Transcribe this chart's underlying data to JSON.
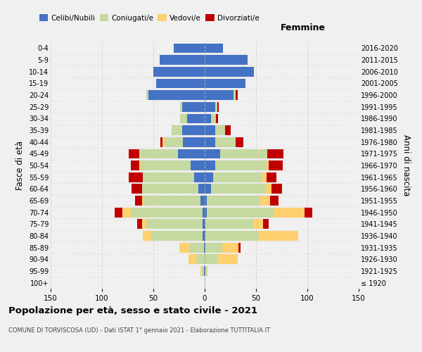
{
  "age_groups": [
    "100+",
    "95-99",
    "90-94",
    "85-89",
    "80-84",
    "75-79",
    "70-74",
    "65-69",
    "60-64",
    "55-59",
    "50-54",
    "45-49",
    "40-44",
    "35-39",
    "30-34",
    "25-29",
    "20-24",
    "15-19",
    "10-14",
    "5-9",
    "0-4"
  ],
  "birth_years": [
    "≤ 1920",
    "1921-1925",
    "1926-1930",
    "1931-1935",
    "1936-1940",
    "1941-1945",
    "1946-1950",
    "1951-1955",
    "1956-1960",
    "1961-1965",
    "1966-1970",
    "1971-1975",
    "1976-1980",
    "1981-1985",
    "1986-1990",
    "1991-1995",
    "1996-2000",
    "2001-2005",
    "2006-2010",
    "2011-2015",
    "2016-2020"
  ],
  "male": {
    "celibi": [
      0,
      1,
      0,
      1,
      2,
      2,
      2,
      4,
      6,
      10,
      14,
      26,
      21,
      22,
      17,
      22,
      55,
      47,
      50,
      44,
      30
    ],
    "coniugati": [
      0,
      2,
      8,
      14,
      50,
      55,
      70,
      55,
      55,
      50,
      48,
      38,
      18,
      10,
      7,
      2,
      2,
      0,
      0,
      0,
      0
    ],
    "vedovi": [
      0,
      1,
      8,
      10,
      8,
      4,
      8,
      2,
      0,
      0,
      2,
      0,
      2,
      0,
      0,
      0,
      0,
      0,
      0,
      0,
      0
    ],
    "divorziati": [
      0,
      0,
      0,
      0,
      0,
      5,
      8,
      7,
      10,
      14,
      8,
      10,
      2,
      0,
      0,
      0,
      0,
      0,
      0,
      0,
      0
    ]
  },
  "female": {
    "nubili": [
      0,
      1,
      0,
      1,
      1,
      1,
      2,
      2,
      6,
      8,
      10,
      15,
      10,
      10,
      6,
      10,
      28,
      40,
      48,
      42,
      18
    ],
    "coniugate": [
      0,
      1,
      12,
      16,
      52,
      46,
      65,
      52,
      53,
      48,
      50,
      46,
      20,
      10,
      5,
      2,
      2,
      0,
      0,
      0,
      0
    ],
    "vedove": [
      0,
      1,
      20,
      16,
      38,
      10,
      30,
      10,
      6,
      4,
      2,
      0,
      0,
      0,
      0,
      0,
      0,
      0,
      0,
      0,
      0
    ],
    "divorziate": [
      0,
      0,
      0,
      2,
      0,
      5,
      8,
      8,
      10,
      10,
      14,
      16,
      8,
      5,
      2,
      2,
      2,
      0,
      0,
      0,
      0
    ]
  },
  "colors": {
    "celibi": "#4472C4",
    "coniugati": "#C5D9A0",
    "vedovi": "#FFD070",
    "divorziati": "#C00000"
  },
  "xlim": 150,
  "title": "Popolazione per età, sesso e stato civile - 2021",
  "subtitle": "COMUNE DI TORVISCOSA (UD) - Dati ISTAT 1° gennaio 2021 - Elaborazione TUTTITALIA.IT",
  "ylabel_left": "Fasce di età",
  "ylabel_right": "Anni di nascita",
  "xlabel_right": "Femmine",
  "background_color": "#f0f0f0",
  "grid_color": "#d0d0d0"
}
